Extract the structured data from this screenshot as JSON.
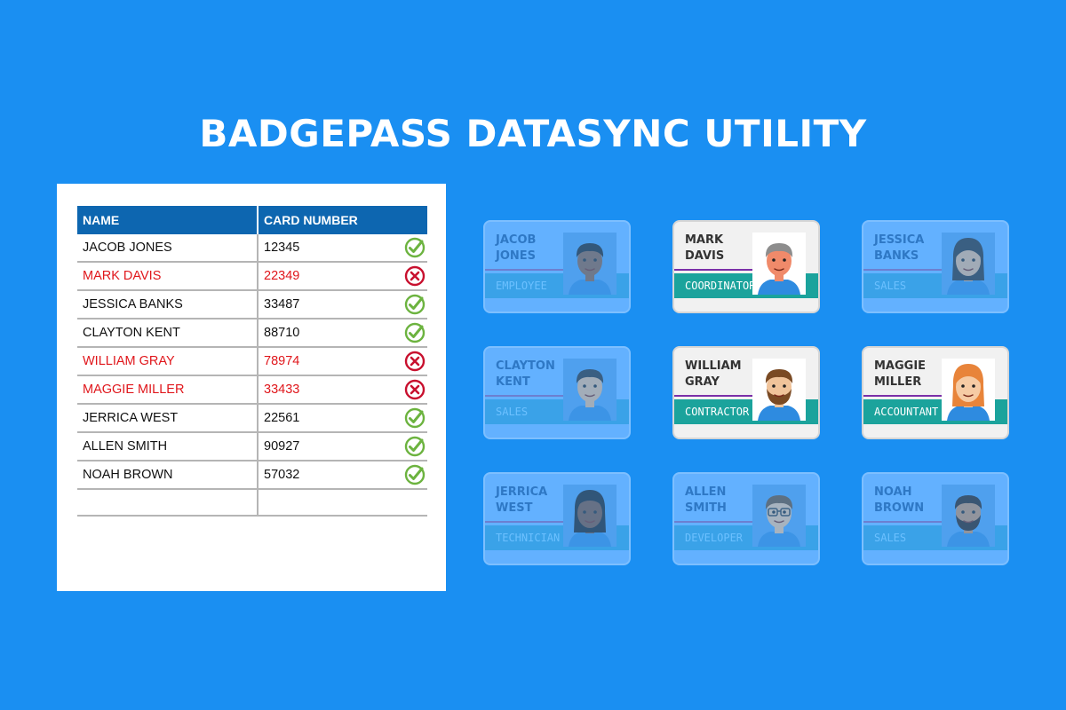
{
  "title": "BADGEPASS DATASYNC UTILITY",
  "table": {
    "headers": {
      "name": "NAME",
      "card": "CARD NUMBER"
    },
    "rows": [
      {
        "name": "JACOB JONES",
        "card": "12345",
        "status": "ok"
      },
      {
        "name": "MARK DAVIS",
        "card": "22349",
        "status": "error"
      },
      {
        "name": "JESSICA BANKS",
        "card": "33487",
        "status": "ok"
      },
      {
        "name": "CLAYTON KENT",
        "card": "88710",
        "status": "ok"
      },
      {
        "name": "WILLIAM GRAY",
        "card": "78974",
        "status": "error"
      },
      {
        "name": "MAGGIE MILLER",
        "card": "33433",
        "status": "error"
      },
      {
        "name": "JERRICA WEST",
        "card": "22561",
        "status": "ok"
      },
      {
        "name": "ALLEN SMITH",
        "card": "90927",
        "status": "ok"
      },
      {
        "name": "NOAH BROWN",
        "card": "57032",
        "status": "ok"
      }
    ]
  },
  "badges": [
    {
      "first": "JACOB",
      "last": "JONES",
      "role": "EMPLOYEE",
      "highlighted": false,
      "skin": "#8a5a3c",
      "hair": "#1e1e1e",
      "style": "short"
    },
    {
      "first": "MARK",
      "last": "DAVIS",
      "role": "COORDINATOR",
      "highlighted": true,
      "skin": "#f08a6a",
      "hair": "#8d8d8d",
      "style": "short"
    },
    {
      "first": "JESSICA",
      "last": "BANKS",
      "role": "SALES",
      "highlighted": false,
      "skin": "#e6b48a",
      "hair": "#2b2b2b",
      "style": "long"
    },
    {
      "first": "CLAYTON",
      "last": "KENT",
      "role": "SALES",
      "highlighted": false,
      "skin": "#e8b88f",
      "hair": "#2a2a2a",
      "style": "short"
    },
    {
      "first": "WILLIAM",
      "last": "GRAY",
      "role": "CONTRACTOR",
      "highlighted": true,
      "skin": "#f0c39a",
      "hair": "#7a4a24",
      "style": "beard"
    },
    {
      "first": "MAGGIE",
      "last": "MILLER",
      "role": "ACCOUNTANT",
      "highlighted": true,
      "skin": "#f6cba4",
      "hair": "#e8843a",
      "style": "long"
    },
    {
      "first": "JERRICA",
      "last": "WEST",
      "role": "TECHNICIAN",
      "highlighted": false,
      "skin": "#7a4b32",
      "hair": "#1a1a1a",
      "style": "curly"
    },
    {
      "first": "ALLEN",
      "last": "SMITH",
      "role": "DEVELOPER",
      "highlighted": false,
      "skin": "#f0c39a",
      "hair": "#6b4a2a",
      "style": "glasses"
    },
    {
      "first": "NOAH",
      "last": "BROWN",
      "role": "SALES",
      "highlighted": false,
      "skin": "#c98a5c",
      "hair": "#2a1a10",
      "style": "beard"
    }
  ],
  "colors": {
    "background": "#1a8ff2",
    "header": "#0d66b0",
    "ok": "#6cb33f",
    "error": "#c8102e",
    "role_bar": "#1ba39c"
  },
  "icons": {
    "ok": "check-circle-icon",
    "error": "x-circle-icon"
  }
}
